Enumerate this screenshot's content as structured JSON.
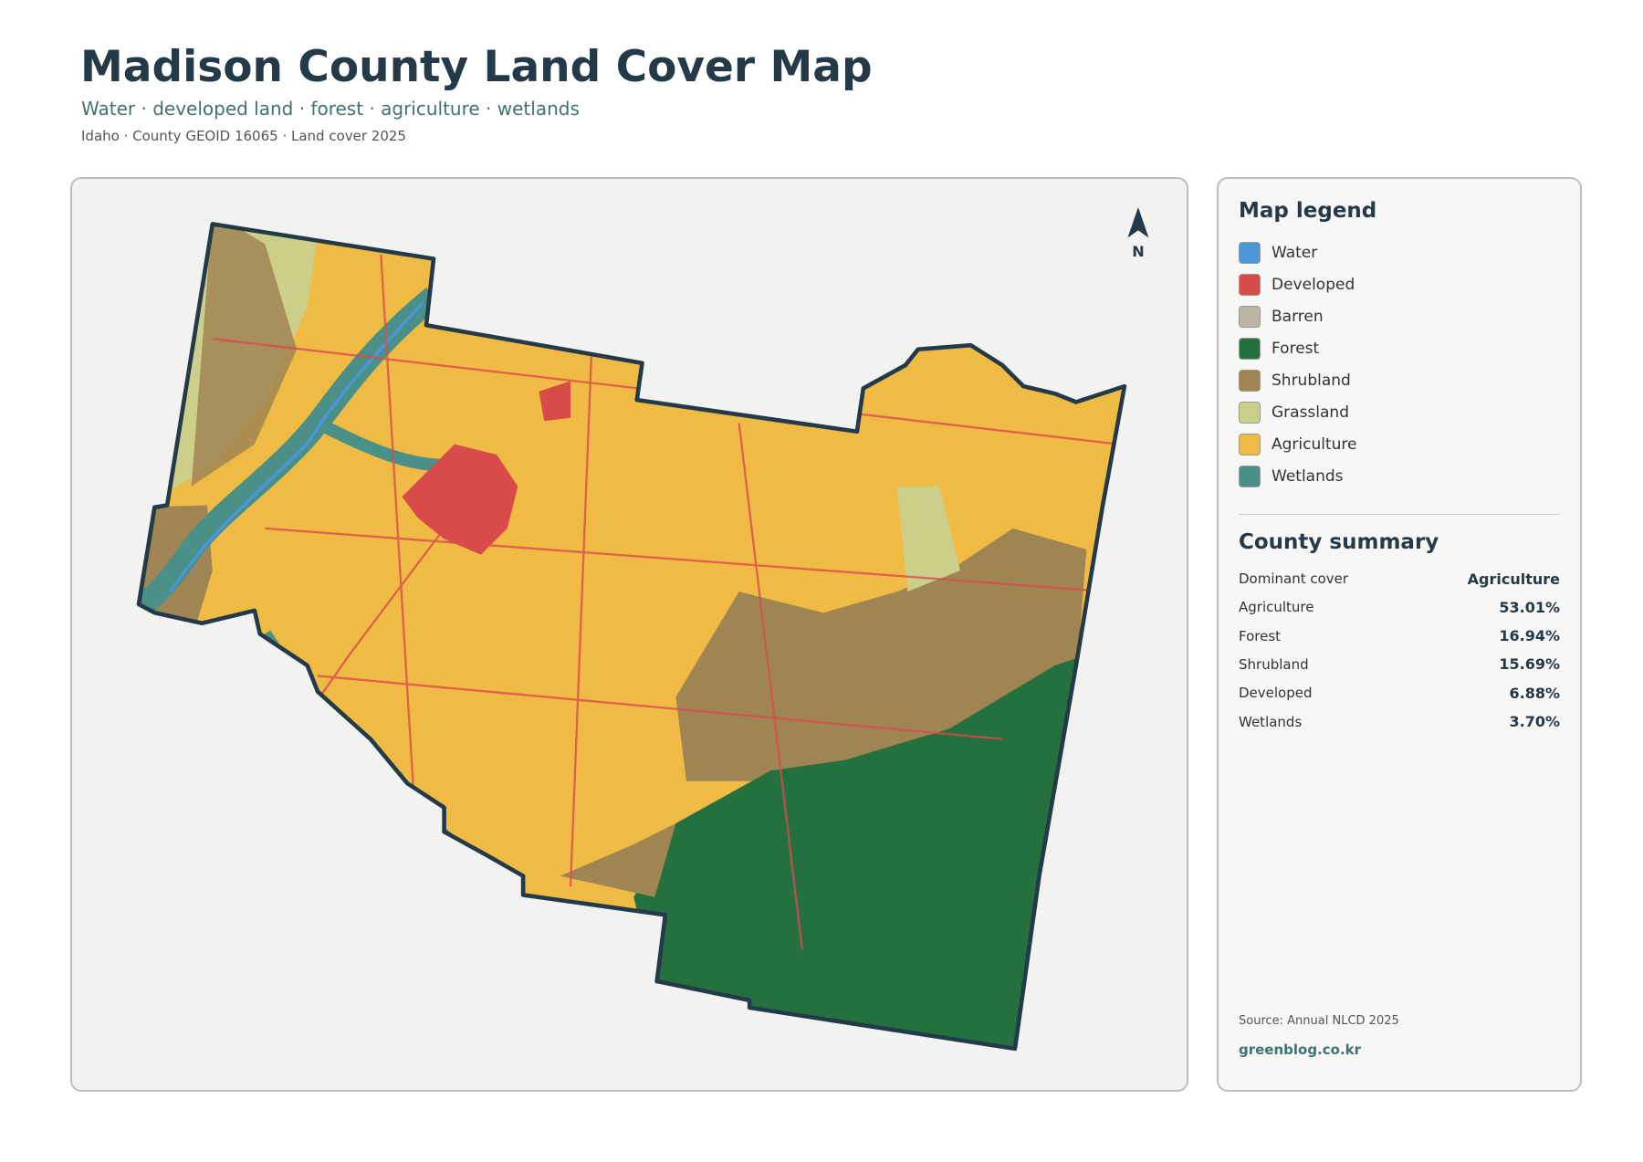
{
  "header": {
    "title": "Madison County Land Cover Map",
    "subtitle": "Water · developed land · forest · agriculture · wetlands",
    "meta": "Idaho · County GEOID 16065 · Land cover 2025"
  },
  "map": {
    "north_label": "N"
  },
  "legend": {
    "title": "Map legend",
    "items": [
      {
        "label": "Water",
        "color": "#4b96d6"
      },
      {
        "label": "Developed",
        "color": "#d94b4b"
      },
      {
        "label": "Barren",
        "color": "#bdb5a3"
      },
      {
        "label": "Forest",
        "color": "#24703f"
      },
      {
        "label": "Shrubland",
        "color": "#a08554"
      },
      {
        "label": "Grassland",
        "color": "#cccf8a"
      },
      {
        "label": "Agriculture",
        "color": "#efbb45"
      },
      {
        "label": "Wetlands",
        "color": "#4a8f88"
      }
    ]
  },
  "summary": {
    "title": "County summary",
    "rows": [
      [
        "Dominant cover",
        "Agriculture"
      ],
      [
        "Agriculture",
        "53.01%"
      ],
      [
        "Forest",
        "16.94%"
      ],
      [
        "Shrubland",
        "15.69%"
      ],
      [
        "Developed",
        "6.88%"
      ],
      [
        "Wetlands",
        "3.70%"
      ]
    ]
  },
  "footer": {
    "source": "Source: Annual NLCD 2025",
    "site": "greenblog.co.kr"
  }
}
